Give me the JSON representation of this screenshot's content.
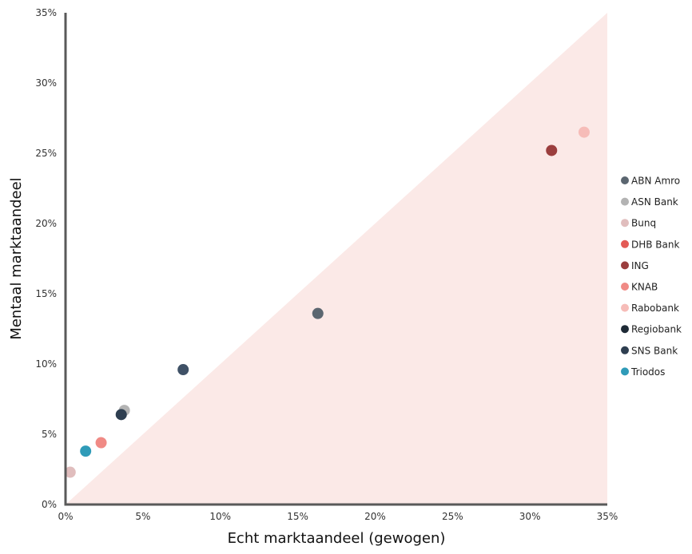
{
  "chart_data": {
    "type": "scatter",
    "title": "",
    "xlabel": "Echt marktaandeel (gewogen)",
    "ylabel": "Mentaal marktaandeel",
    "xlim": [
      0,
      35
    ],
    "ylim": [
      0,
      35
    ],
    "x_ticks": [
      "0%",
      "5%",
      "10%",
      "15%",
      "20%",
      "25%",
      "30%",
      "35%"
    ],
    "y_ticks": [
      "0%",
      "5%",
      "10%",
      "15%",
      "20%",
      "25%",
      "30%",
      "35%"
    ],
    "grid": false,
    "legend_position": "right",
    "shaded_region": {
      "description": "area below diagonal y = x",
      "color": "#fbe9e7"
    },
    "series": [
      {
        "name": "ABN Amro",
        "color": "#5b6670",
        "x": 16.3,
        "y": 13.6
      },
      {
        "name": "ASN Bank",
        "color": "#b3b3b3",
        "x": 3.8,
        "y": 6.7
      },
      {
        "name": "Bunq",
        "color": "#e0bdbd",
        "x": 0.3,
        "y": 2.3
      },
      {
        "name": "DHB Bank",
        "color": "#e35a55",
        "x": null,
        "y": null
      },
      {
        "name": "ING",
        "color": "#9b3e3e",
        "x": 31.4,
        "y": 25.2
      },
      {
        "name": "KNAB",
        "color": "#f08a85",
        "x": 2.3,
        "y": 4.4
      },
      {
        "name": "Rabobank",
        "color": "#f6bcb8",
        "x": 33.5,
        "y": 26.5
      },
      {
        "name": "Regiobank",
        "color": "#1e2a36",
        "x": null,
        "y": null
      },
      {
        "name": "SNS Bank",
        "color": "#2e3e50",
        "x": 3.6,
        "y": 6.4
      },
      {
        "name": "Triodos",
        "color": "#2f9bb8",
        "x": 1.3,
        "y": 3.8
      }
    ],
    "extra_points": [
      {
        "color": "#3f5166",
        "x": 7.6,
        "y": 9.6
      }
    ]
  }
}
